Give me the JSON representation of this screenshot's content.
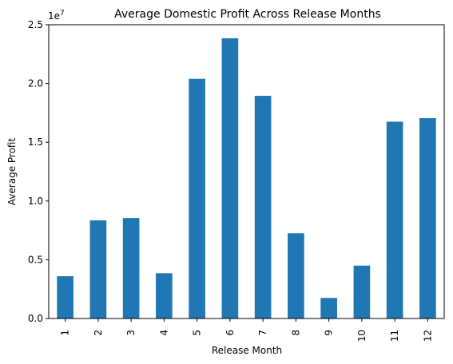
{
  "chart_data": {
    "type": "bar",
    "title": "Average Domestic Profit Across Release Months",
    "xlabel": "Release Month",
    "ylabel": "Average Profit",
    "y_offset_label": "1e7",
    "categories": [
      "1",
      "2",
      "3",
      "4",
      "5",
      "6",
      "7",
      "8",
      "9",
      "10",
      "11",
      "12"
    ],
    "values": [
      3600000,
      8350000,
      8550000,
      3850000,
      20400000,
      23850000,
      18950000,
      7250000,
      1750000,
      4500000,
      16750000,
      17050000
    ],
    "ylim": [
      0,
      25000000
    ],
    "yticks": [
      0,
      5000000,
      10000000,
      15000000,
      20000000,
      25000000
    ],
    "ytick_labels": [
      "0.0",
      "0.5",
      "1.0",
      "1.5",
      "2.0",
      "2.5"
    ],
    "bar_color": "#1f77b4",
    "grid": false,
    "legend": "none"
  }
}
